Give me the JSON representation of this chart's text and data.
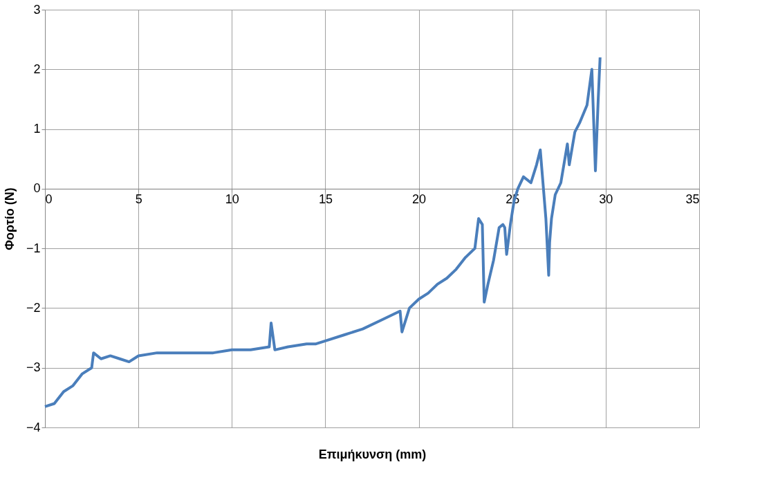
{
  "chart_data": {
    "type": "line",
    "xlabel": "Επιμήκυνση (mm)",
    "ylabel": "Φορτίο (N)",
    "xlim": [
      0,
      35
    ],
    "xticks": [
      0,
      5,
      10,
      15,
      20,
      25,
      30,
      35
    ],
    "ylim": [
      -4,
      3
    ],
    "yticks": [
      -4,
      -3,
      -2,
      -1,
      0,
      1,
      2,
      3
    ],
    "grid": true,
    "marker": "none",
    "line_style": "solid",
    "series": [
      {
        "color": "#4a7ebb",
        "x": [
          0,
          0.5,
          1,
          1.5,
          2,
          2.5,
          2.6,
          3,
          3.5,
          4,
          4.5,
          5,
          6,
          7,
          8,
          9,
          10,
          11,
          12,
          12.1,
          12.3,
          13,
          14,
          14.5,
          15,
          16,
          17,
          18,
          19,
          19.1,
          19.5,
          20,
          20.5,
          21,
          21.5,
          22,
          22.5,
          23,
          23.2,
          23.4,
          23.5,
          23.7,
          24,
          24.3,
          24.5,
          24.6,
          24.7,
          24.9,
          25.1,
          25.3,
          25.6,
          26,
          26.3,
          26.5,
          26.8,
          26.95,
          27,
          27.1,
          27.3,
          27.6,
          27.95,
          28.05,
          28.35,
          28.6,
          29,
          29.26,
          29.45,
          29.6,
          29.7
        ],
        "values": [
          -3.65,
          -3.6,
          -3.4,
          -3.3,
          -3.1,
          -3.0,
          -2.75,
          -2.85,
          -2.8,
          -2.85,
          -2.9,
          -2.8,
          -2.75,
          -2.75,
          -2.75,
          -2.75,
          -2.7,
          -2.7,
          -2.65,
          -2.25,
          -2.7,
          -2.65,
          -2.6,
          -2.6,
          -2.55,
          -2.45,
          -2.35,
          -2.2,
          -2.05,
          -2.4,
          -2.0,
          -1.85,
          -1.75,
          -1.6,
          -1.5,
          -1.35,
          -1.15,
          -1.0,
          -0.5,
          -0.6,
          -1.9,
          -1.6,
          -1.2,
          -0.65,
          -0.6,
          -0.65,
          -1.1,
          -0.6,
          -0.2,
          0,
          0.2,
          0.1,
          0.4,
          0.65,
          -0.5,
          -1.45,
          -0.9,
          -0.5,
          -0.1,
          0.1,
          0.75,
          0.4,
          0.95,
          1.1,
          1.4,
          2.0,
          0.3,
          1.5,
          2.2
        ]
      }
    ]
  }
}
